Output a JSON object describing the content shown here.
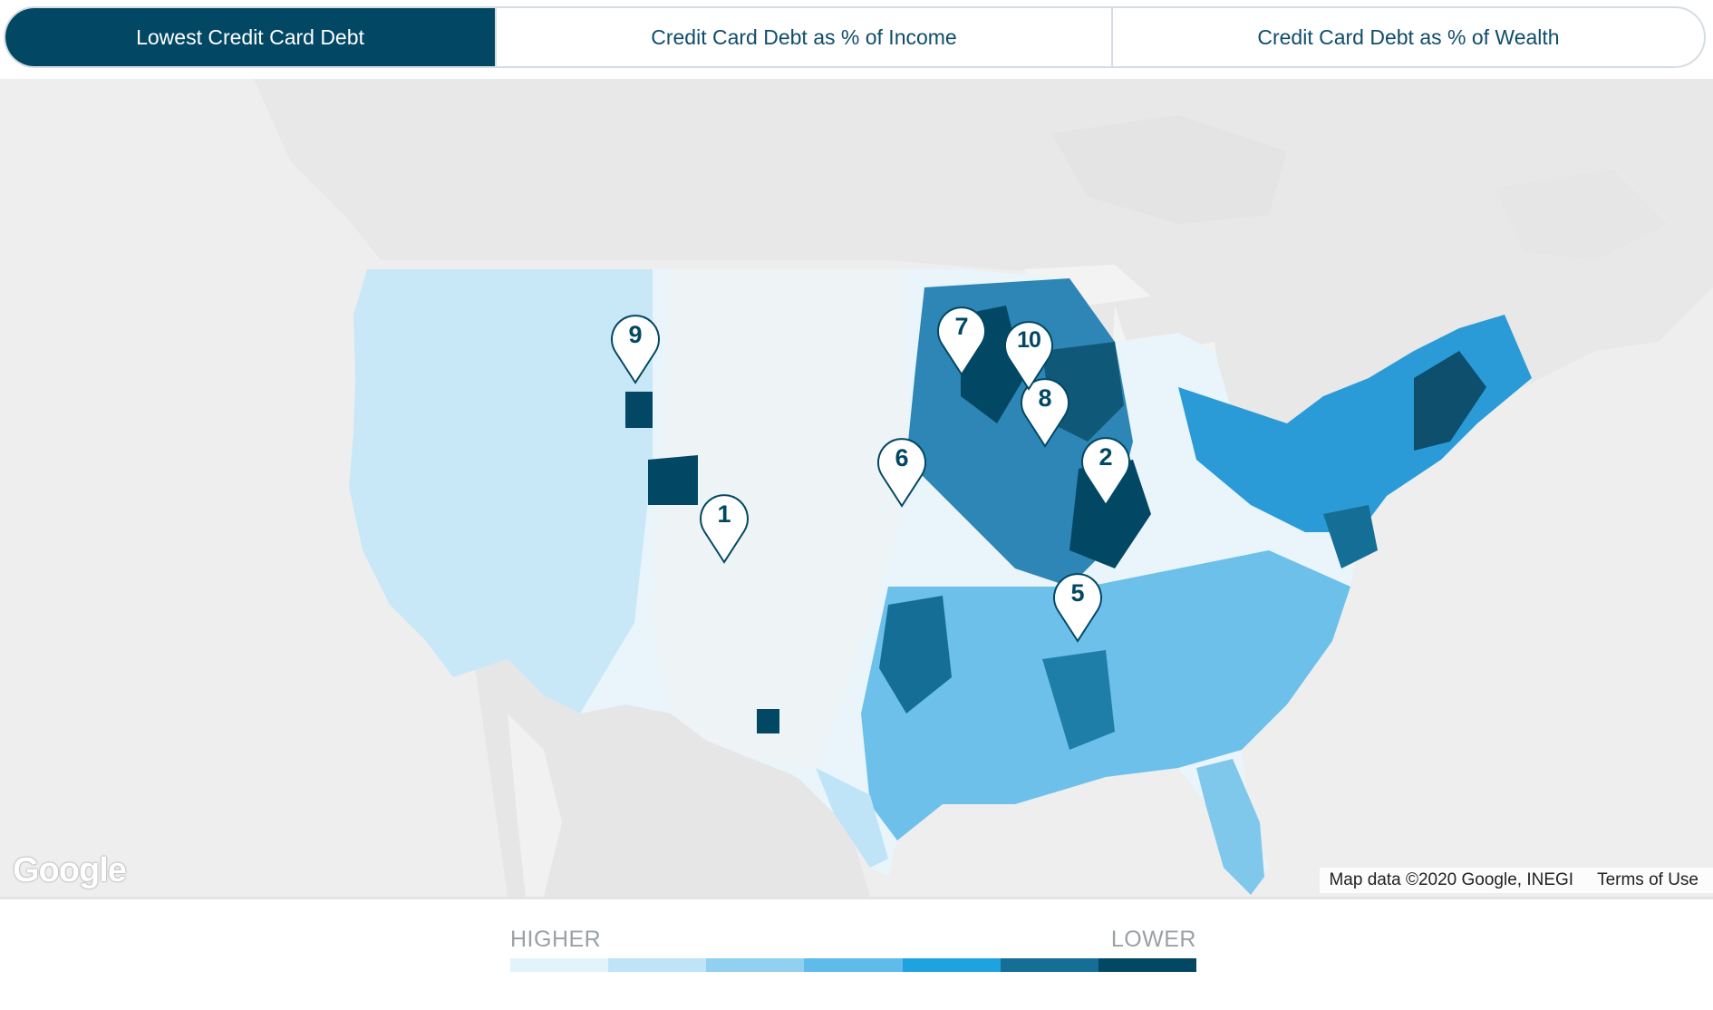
{
  "tabs": [
    {
      "label": "Lowest Credit Card Debt",
      "active": true
    },
    {
      "label": "Credit Card Debt as % of Income",
      "active": false
    },
    {
      "label": "Credit Card Debt as % of Wealth",
      "active": false
    }
  ],
  "map": {
    "logo_text": "Google",
    "attribution": "Map data ©2020 Google, INEGI",
    "terms": "Terms of Use",
    "markers": [
      "1",
      "2",
      "5",
      "6",
      "7",
      "8",
      "9",
      "10"
    ]
  },
  "legend": {
    "higher_label": "HIGHER",
    "lower_label": "LOWER",
    "colors": [
      "#e3f3fc",
      "#bfe4f7",
      "#91d0f0",
      "#5fbbea",
      "#1fa3df",
      "#156e96",
      "#024864"
    ]
  }
}
